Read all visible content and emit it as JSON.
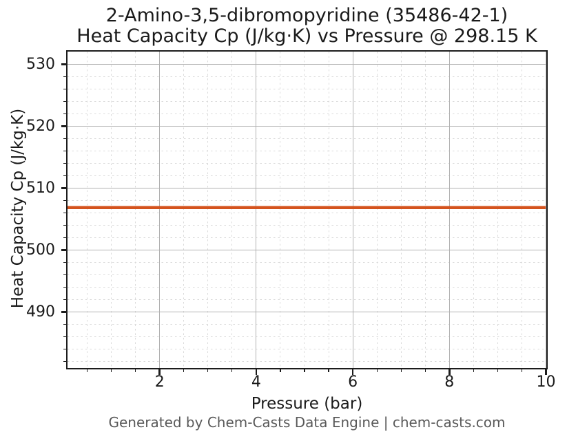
{
  "chart_data": {
    "type": "line",
    "title_line1": "2-Amino-3,5-dibromopyridine (35486-42-1)",
    "title_line2": "Heat Capacity Cp (J/kg·K) vs Pressure @ 298.15 K",
    "title": "2-Amino-3,5-dibromopyridine (35486-42-1)\nHeat Capacity Cp (J/kg·K) vs Pressure @ 298.15 K",
    "xlabel": "Pressure (bar)",
    "ylabel": "Heat Capacity Cp (J/kg·K)",
    "xlim": [
      0.1,
      10
    ],
    "ylim": [
      481,
      532
    ],
    "x_ticks": [
      2,
      4,
      6,
      8,
      10
    ],
    "x_tick_labels": [
      "2",
      "4",
      "6",
      "8",
      "10"
    ],
    "x_minor_step": 0.5,
    "y_ticks": [
      490,
      500,
      510,
      520,
      530
    ],
    "y_tick_labels": [
      "490",
      "500",
      "510",
      "520",
      "530"
    ],
    "y_minor_step": 2,
    "grid": {
      "major": true,
      "minor": true,
      "major_color": "#b0b0b0",
      "minor_color": "#dadada"
    },
    "series": [
      {
        "name": "Heat Capacity Cp",
        "color": "#d4531d",
        "x": [
          0.1,
          10
        ],
        "y": [
          506.8,
          506.8
        ],
        "constant_value": 506.8
      }
    ]
  },
  "footer": {
    "text": "Generated by Chem-Casts Data Engine | chem-casts.com"
  }
}
